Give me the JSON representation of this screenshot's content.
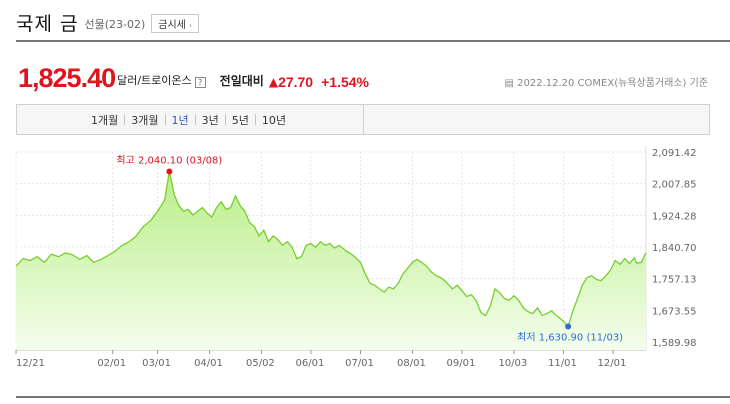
{
  "header": {
    "title": "국제 금",
    "subtitle": "선물(23-02)",
    "quote_button": "금시세",
    "quote_chevron": "›"
  },
  "price": {
    "value": "1,825.40",
    "unit": "달러/트로이온스",
    "help": "?",
    "change_label": "전일대비",
    "change_arrow": "▲",
    "change_value": "27.70",
    "change_percent": "+1.54%",
    "timestamp": "2022.12.20  COMEX(뉴욕상품거래소) 기준"
  },
  "period_tabs": {
    "items": [
      "1개월",
      "3개월",
      "1년",
      "3년",
      "5년",
      "10년"
    ],
    "selected": "1년"
  },
  "chart_data": {
    "type": "area",
    "ylim": [
      1589.98,
      2091.42
    ],
    "yticks": [
      "2,091.42",
      "2,007.85",
      "1,924.28",
      "1,840.70",
      "1,757.13",
      "1,673.55",
      "1,589.98"
    ],
    "xticks": [
      {
        "label": "12/21",
        "x": 0
      },
      {
        "label": "02/01",
        "x": 41
      },
      {
        "label": "03/01",
        "x": 60
      },
      {
        "label": "04/01",
        "x": 82
      },
      {
        "label": "05/02",
        "x": 104
      },
      {
        "label": "06/01",
        "x": 125
      },
      {
        "label": "07/01",
        "x": 146
      },
      {
        "label": "08/01",
        "x": 168
      },
      {
        "label": "09/01",
        "x": 189
      },
      {
        "label": "10/03",
        "x": 211
      },
      {
        "label": "11/01",
        "x": 232
      },
      {
        "label": "12/01",
        "x": 253
      }
    ],
    "high": {
      "label": "최고 2,040.10 (03/08)",
      "x": 65,
      "value": 2040.1
    },
    "low": {
      "label": "최저 1,630.90 (11/03)",
      "x": 234,
      "value": 1630.9
    },
    "series": [
      {
        "x": 0,
        "y": 1790
      },
      {
        "x": 3,
        "y": 1810
      },
      {
        "x": 6,
        "y": 1805
      },
      {
        "x": 9,
        "y": 1815
      },
      {
        "x": 12,
        "y": 1800
      },
      {
        "x": 15,
        "y": 1822
      },
      {
        "x": 18,
        "y": 1815
      },
      {
        "x": 21,
        "y": 1825
      },
      {
        "x": 24,
        "y": 1820
      },
      {
        "x": 27,
        "y": 1808
      },
      {
        "x": 30,
        "y": 1818
      },
      {
        "x": 33,
        "y": 1800
      },
      {
        "x": 36,
        "y": 1808
      },
      {
        "x": 39,
        "y": 1818
      },
      {
        "x": 42,
        "y": 1830
      },
      {
        "x": 45,
        "y": 1845
      },
      {
        "x": 48,
        "y": 1855
      },
      {
        "x": 51,
        "y": 1870
      },
      {
        "x": 54,
        "y": 1895
      },
      {
        "x": 57,
        "y": 1910
      },
      {
        "x": 60,
        "y": 1935
      },
      {
        "x": 63,
        "y": 1965
      },
      {
        "x": 65,
        "y": 2040.1
      },
      {
        "x": 67,
        "y": 1980
      },
      {
        "x": 69,
        "y": 1950
      },
      {
        "x": 71,
        "y": 1935
      },
      {
        "x": 73,
        "y": 1940
      },
      {
        "x": 75,
        "y": 1925
      },
      {
        "x": 77,
        "y": 1935
      },
      {
        "x": 79,
        "y": 1945
      },
      {
        "x": 81,
        "y": 1930
      },
      {
        "x": 83,
        "y": 1920
      },
      {
        "x": 85,
        "y": 1945
      },
      {
        "x": 87,
        "y": 1960
      },
      {
        "x": 89,
        "y": 1940
      },
      {
        "x": 91,
        "y": 1945
      },
      {
        "x": 93,
        "y": 1975
      },
      {
        "x": 95,
        "y": 1950
      },
      {
        "x": 97,
        "y": 1935
      },
      {
        "x": 99,
        "y": 1905
      },
      {
        "x": 101,
        "y": 1895
      },
      {
        "x": 103,
        "y": 1870
      },
      {
        "x": 105,
        "y": 1885
      },
      {
        "x": 107,
        "y": 1855
      },
      {
        "x": 109,
        "y": 1870
      },
      {
        "x": 111,
        "y": 1860
      },
      {
        "x": 113,
        "y": 1845
      },
      {
        "x": 115,
        "y": 1855
      },
      {
        "x": 117,
        "y": 1840
      },
      {
        "x": 119,
        "y": 1810
      },
      {
        "x": 121,
        "y": 1815
      },
      {
        "x": 123,
        "y": 1845
      },
      {
        "x": 125,
        "y": 1850
      },
      {
        "x": 127,
        "y": 1840
      },
      {
        "x": 129,
        "y": 1855
      },
      {
        "x": 131,
        "y": 1845
      },
      {
        "x": 133,
        "y": 1850
      },
      {
        "x": 135,
        "y": 1838
      },
      {
        "x": 137,
        "y": 1845
      },
      {
        "x": 140,
        "y": 1830
      },
      {
        "x": 143,
        "y": 1818
      },
      {
        "x": 146,
        "y": 1800
      },
      {
        "x": 148,
        "y": 1770
      },
      {
        "x": 150,
        "y": 1745
      },
      {
        "x": 152,
        "y": 1740
      },
      {
        "x": 154,
        "y": 1730
      },
      {
        "x": 156,
        "y": 1722
      },
      {
        "x": 158,
        "y": 1735
      },
      {
        "x": 160,
        "y": 1730
      },
      {
        "x": 162,
        "y": 1745
      },
      {
        "x": 164,
        "y": 1770
      },
      {
        "x": 166,
        "y": 1785
      },
      {
        "x": 168,
        "y": 1800
      },
      {
        "x": 170,
        "y": 1808
      },
      {
        "x": 172,
        "y": 1800
      },
      {
        "x": 174,
        "y": 1790
      },
      {
        "x": 176,
        "y": 1775
      },
      {
        "x": 178,
        "y": 1765
      },
      {
        "x": 180,
        "y": 1760
      },
      {
        "x": 182,
        "y": 1750
      },
      {
        "x": 185,
        "y": 1730
      },
      {
        "x": 187,
        "y": 1740
      },
      {
        "x": 189,
        "y": 1725
      },
      {
        "x": 191,
        "y": 1710
      },
      {
        "x": 193,
        "y": 1715
      },
      {
        "x": 195,
        "y": 1700
      },
      {
        "x": 197,
        "y": 1668
      },
      {
        "x": 199,
        "y": 1660
      },
      {
        "x": 201,
        "y": 1685
      },
      {
        "x": 203,
        "y": 1730
      },
      {
        "x": 205,
        "y": 1720
      },
      {
        "x": 207,
        "y": 1705
      },
      {
        "x": 209,
        "y": 1700
      },
      {
        "x": 211,
        "y": 1712
      },
      {
        "x": 213,
        "y": 1700
      },
      {
        "x": 215,
        "y": 1680
      },
      {
        "x": 217,
        "y": 1670
      },
      {
        "x": 219,
        "y": 1665
      },
      {
        "x": 221,
        "y": 1680
      },
      {
        "x": 223,
        "y": 1660
      },
      {
        "x": 225,
        "y": 1665
      },
      {
        "x": 227,
        "y": 1672
      },
      {
        "x": 229,
        "y": 1660
      },
      {
        "x": 231,
        "y": 1650
      },
      {
        "x": 232,
        "y": 1645
      },
      {
        "x": 234,
        "y": 1630.9
      },
      {
        "x": 236,
        "y": 1672
      },
      {
        "x": 238,
        "y": 1705
      },
      {
        "x": 240,
        "y": 1740
      },
      {
        "x": 242,
        "y": 1760
      },
      {
        "x": 244,
        "y": 1765
      },
      {
        "x": 246,
        "y": 1755
      },
      {
        "x": 248,
        "y": 1752
      },
      {
        "x": 250,
        "y": 1765
      },
      {
        "x": 252,
        "y": 1780
      },
      {
        "x": 254,
        "y": 1805
      },
      {
        "x": 256,
        "y": 1795
      },
      {
        "x": 258,
        "y": 1810
      },
      {
        "x": 260,
        "y": 1797
      },
      {
        "x": 262,
        "y": 1812
      },
      {
        "x": 263,
        "y": 1798
      },
      {
        "x": 265,
        "y": 1800
      },
      {
        "x": 267,
        "y": 1825.4
      }
    ]
  }
}
